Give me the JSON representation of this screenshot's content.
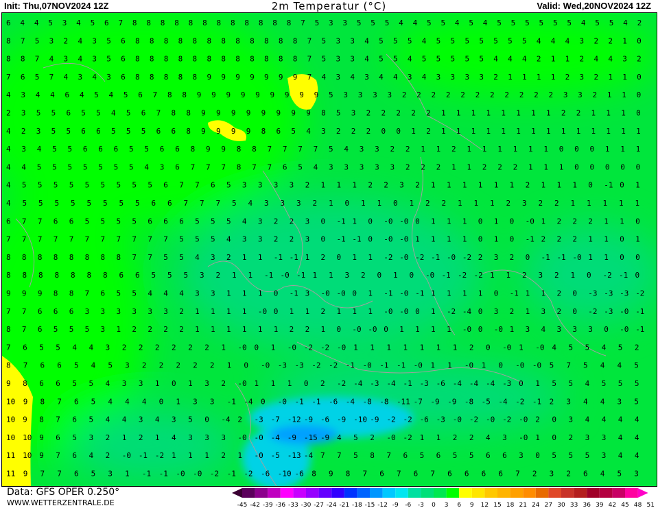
{
  "header": {
    "init": "Init: Thu,07NOV2024  12Z",
    "title": "2m Temperatur (°C)",
    "valid": "Valid: Wed,20NOV2024  12Z"
  },
  "footer": {
    "data_source": "Data: GFS OPER 0.250°",
    "website": "WWW.WETTERZENTRALE.DE"
  },
  "legend": {
    "labels": [
      "-45",
      "-42",
      "-39",
      "-36",
      "-33",
      "-30",
      "-27",
      "-24",
      "-21",
      "-18",
      "-15",
      "-12",
      "-9",
      "-6",
      "-3",
      "0",
      "3",
      "6",
      "9",
      "12",
      "15",
      "18",
      "21",
      "24",
      "27",
      "30",
      "33",
      "36",
      "39",
      "42",
      "45",
      "48",
      "51"
    ],
    "low_color": "#3a0032",
    "high_color": "#ff00c8",
    "colors": [
      "#5c005c",
      "#8c008c",
      "#c000c0",
      "#ff00ff",
      "#c800ff",
      "#9600ff",
      "#6400ff",
      "#3200ff",
      "#0032ff",
      "#0064ff",
      "#0096ff",
      "#00c8ff",
      "#00e6f0",
      "#00e0a0",
      "#00e078",
      "#00e850",
      "#00ff00",
      "#ffff00",
      "#ffe600",
      "#ffc800",
      "#ffb400",
      "#ffa000",
      "#ff8c00",
      "#e86a00",
      "#e04828",
      "#c83228",
      "#b41e1e",
      "#a00028",
      "#b40040",
      "#c80064",
      "#ff00a0"
    ]
  },
  "map": {
    "rows": [
      "6 4 4 5 3 4 5 6 7 8 8 8 8 8 8 8 8 8 8 8 8 7 5 3 3 5 5 5 4 4 5 5 4 5 4 5 5 5 5 5 5 4 5 5 4 2",
      "8 7 5 3 2 4 3 5 6 8 8 8 8 8 8 8 8 8 8 8 8 7 5 3 3 4 5 5 5 4 5 5 5 5 5 5 5 4 4 4 3 2 2 1 0",
      "8 8 7 4 3 4 3 5 6 8 8 8 8 8 8 8 8 8 8 8 8 7 5 3 3 4 5 5 4 5 5 5 5 5 4 4 4 2 1 1 2 4 4 3 2",
      "7 6 5 7 4 3 4 3 6 8 8 8 8 8 9 9 9 9 9 9 9 7 4 3 4 3 4 4 3 4 3 3 3 3 2 1 1 1 1 2 3 2 1 1 0",
      "4 3 4 4 6 4 5 4 5 6 7 8 8 9 9 9 9 9 9 9 9 9 5 3 3 3 3 2 2 2 2 2 2 2 2 2 2 2 3 3 2 1 1 0",
      "2 3 5 5 6 5 5 4 5 6 7 8 8 9 9 9 9 9 9 9 9 8 5 3 2 2 2 2 2 1 1 1 1 1 1 1 1 2 2 1 1 1 0",
      "4 2 3 5 5 6 6 5 5 5 6 6 8 9 9 9 9 8 6 5 4 3 2 2 2 0 0 1 2 1 1 1 1 1 1 1 1 1 1 1 1 1 1",
      "4 3 4 5 5 6 6 6 5 5 6 6 8 9 9 8 8 7 7 7 7 5 4 3 3 2 2 1 1 2 1 1 1 1 1 1 0 0 0 1 1 1",
      "4 4 5 5 5 5 5 5 5 4 3 6 7 7 7 8 7 7 6 5 4 3 3 3 3 3 2 2 2 1 1 2 2 2 1 1 1 0 0 0 0 0",
      "4 5 5 5 5 5 5 5 5 5 6 7 7 6 5 3 3 3 3 2 1 1 1 2 2 3 2 1 1 1 1 1 1 2 1 1 1 0 -1 0 1",
      "4 5 5 5 5 5 5 5 5 6 6 7 7 7 5 4 3 3 3 2 1 0 1 1 0 1 2 2 1 1 1 2 3 2 2 1 1 1 1 1",
      "6 7 7 6 6 5 5 5 5 6 6 6 5 5 5 4 3 2 2 3 0 -1 1 0 -0 -0 0 1 1 1 0 1 0 -0 1 2 2 2 1 1 0",
      "7 7 7 7 7 7 7 7 7 7 7 5 5 5 4 3 3 2 2 3 0 -1 -1 0 -0 -0 1 1 1 1 0 1 0 -1 2 2 2 1 1 0 1",
      "8 8 8 8 8 8 8 8 7 7 5 5 4 3 2 1 1 -1 -1 1 2 0 1 1 -2 -0 -2 -1 -0 -2 2 3 2 0 -1 -1 -0 1 1 0 0",
      "8 8 8 8 8 8 8 6 6 5 5 5 3 2 1 1 -1 -0 -1 1 1 3 2 0 1 0 -0 -1 -2 -2 1 1 2 3 2 1 0 -2 -1 0",
      "9 9 9 8 8 7 6 5 5 4 4 4 3 3 1 1 1 0 -1 3 -0 -0 0 1 -1 -0 -1 1 1 1 1 0 -1 1 1 2 0 -3 -3 -3 -2",
      "7 7 6 6 6 3 3 3 3 3 3 2 1 1 1 1 -0 0 1 1 2 1 1 1 -0 -0 0 1 -2 -4 0 3 2 1 3 2 0 -2 -3 -0 -1",
      "8 7 6 5 5 5 3 1 2 2 2 2 1 1 1 1 1 1 2 2 1 0 -0 -0 0 1 1 1 1 -0 0 -0 1 3 4 3 3 3 0 -0 -1",
      "7 6 5 5 4 4 3 2 2 2 2 2 2 1 -0 0 1 -0 -2 -2 -0 1 1 1 1 1 1 1 2 0 -0 1 -0 4 5 5 4 5 2",
      "8 7 6 6 5 4 5 3 2 2 2 2 2 1 0 -0 -3 -3 -2 -2 -1 -0 -1 -1 -0 1 1 -0 1 0 -0 -0 5 7 5 4 4 5",
      "9 8 6 6 5 5 4 3 3 1 0 1 3 2 -0 1 1 1 0 2 -2 -4 -3 -4 -1 -3 -6 -4 -4 -4 -3 0 1 5 5 4 5 5 5",
      "10 9 8 7 6 5 4 4 4 0 1 3 3 -1 -4 0 -0 -1 -1 -6 -4 -8 -8 -11 -7 -9 -9 -8 -5 -4 -2 -1 2 3 4 4 3 5",
      "10 9 8 7 6 5 4 4 3 4 3 5 0 -4 2 -3 -7 -12 -9 -6 -9 -10 -9 -2 -2 -6 -3 -0 -2 -0 -2 -0 2 0 3 4 4 4 4",
      "10 10 9 6 5 3 2 1 2 1 4 3 3 3 -0 -0 -4 -9 -15 -9 4 5 2 -0 -2 1 1 2 2 4 3 -0 1 0 2 3 3 4 4",
      "11 10 9 7 6 4 2 -0 -1 -2 1 1 1 2 1 -0 -5 -13 -4 7 7 5 8 7 6 5 6 5 5 6 6 3 0 5 5 5 3 4 4",
      "11 9 7 7 6 5 3 1 -1 -1 -0 -0 -2 -1 -2 -6 -10 -6 8 9 8 7 6 7 6 7 6 6 6 6 7 2 3 2 6 4 5 3"
    ],
    "colors": {
      "base": "#00e63c",
      "bright": "#00ff00",
      "teal": "#00dc78",
      "cyan": "#00d2e6",
      "blue": "#00a0ff",
      "yellow": "#ffff00",
      "border": "#a0a0a0"
    }
  }
}
